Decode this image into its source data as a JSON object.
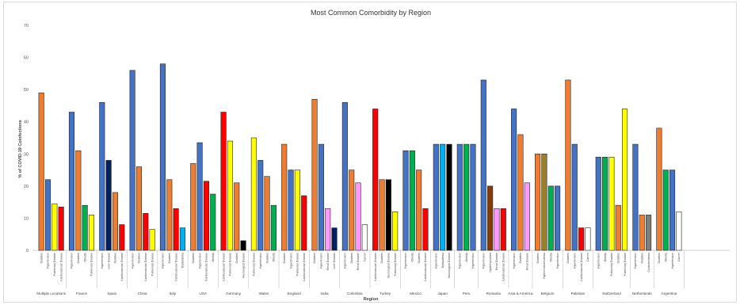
{
  "chart_data": {
    "type": "bar",
    "title": "Most Common Comorbidity by Region",
    "xlabel": "Region",
    "ylabel": "% of COVID-19 Coinfections",
    "ylim": [
      0,
      70
    ],
    "yticks": [
      0,
      10,
      20,
      30,
      40,
      50,
      60,
      70
    ],
    "grid": false,
    "legend": "none",
    "colors": {
      "Diabetes": "#ed7d31",
      "Hypertension": "#4472c4",
      "Pulmonary Disease": "#ffff00",
      "Cardiovascular Disease": "#ff0000",
      "Obesity": "#00b050",
      "Liver Disease": "#002060",
      "Dyslipidemia": "#00b0f0",
      "Neurological Disease": "#000000",
      "Renal Disease": "#ff99ff",
      "Cancer": "#ffffff",
      "Hyperthyroidism": "#843c0c",
      "Hypercholesterolemia": "#9c7f29",
      "Cholesterolemia": "#7f7f7f"
    },
    "groups": [
      {
        "region": "Multiple Locations",
        "bars": [
          {
            "label": "Diabetes",
            "value": 49
          },
          {
            "label": "Hypertension",
            "value": 22
          },
          {
            "label": "Pulmonary Disease",
            "value": 14.5
          },
          {
            "label": "Cardiovascular Disease",
            "value": 13.5
          }
        ]
      },
      {
        "region": "France",
        "bars": [
          {
            "label": "Hypertension",
            "value": 43
          },
          {
            "label": "Diabetes",
            "value": 31
          },
          {
            "label": "Obesity",
            "value": 14
          },
          {
            "label": "Pulmonary Disease",
            "value": 11
          }
        ]
      },
      {
        "region": "Spain",
        "bars": [
          {
            "label": "Hypertension",
            "value": 46
          },
          {
            "label": "Liver Disease",
            "value": 28
          },
          {
            "label": "Diabetes",
            "value": 18
          },
          {
            "label": "Cardiovascular Disease",
            "value": 8
          }
        ]
      },
      {
        "region": "China",
        "bars": [
          {
            "label": "Hypertension",
            "value": 56
          },
          {
            "label": "Diabetes",
            "value": 26
          },
          {
            "label": "Cardiovascular Disease",
            "value": 11.5
          },
          {
            "label": "Pulmonary Disease",
            "value": 6.5
          }
        ]
      },
      {
        "region": "Italy",
        "bars": [
          {
            "label": "Hypertension",
            "value": 58
          },
          {
            "label": "Diabetes",
            "value": 22
          },
          {
            "label": "Cardiovascular Disease",
            "value": 13
          },
          {
            "label": "Dyslipidemia",
            "value": 7
          }
        ]
      },
      {
        "region": "USA",
        "bars": [
          {
            "label": "Diabetes",
            "value": 27
          },
          {
            "label": "Hypertension",
            "value": 33.5
          },
          {
            "label": "Cardiovascular Disease",
            "value": 21.5
          },
          {
            "label": "Obesity",
            "value": 17.5
          }
        ]
      },
      {
        "region": "Germany",
        "bars": [
          {
            "label": "Cardiovascular Disease",
            "value": 43
          },
          {
            "label": "Pulmonary Disease",
            "value": 34
          },
          {
            "label": "Diabetes",
            "value": 21
          },
          {
            "label": "Neurological Disease",
            "value": 3
          }
        ]
      },
      {
        "region": "Wales",
        "bars": [
          {
            "label": "Pulmonary Disease",
            "value": 35
          },
          {
            "label": "Hypertension",
            "value": 28
          },
          {
            "label": "Diabetes",
            "value": 23
          },
          {
            "label": "Obesity",
            "value": 14
          }
        ]
      },
      {
        "region": "England",
        "bars": [
          {
            "label": "Diabetes",
            "value": 33
          },
          {
            "label": "Hypertension",
            "value": 25
          },
          {
            "label": "Pulmonary Disease",
            "value": 25
          },
          {
            "label": "Cardiovascular Disease",
            "value": 17
          }
        ]
      },
      {
        "region": "India",
        "bars": [
          {
            "label": "Diabetes",
            "value": 47
          },
          {
            "label": "Hypertension",
            "value": 33
          },
          {
            "label": "Renal Disease",
            "value": 13
          },
          {
            "label": "Liver Disease",
            "value": 7
          }
        ]
      },
      {
        "region": "Colombia",
        "bars": [
          {
            "label": "Hypertension",
            "value": 46
          },
          {
            "label": "Diabetes",
            "value": 25
          },
          {
            "label": "Renal Disease",
            "value": 21
          },
          {
            "label": "Cancer",
            "value": 8
          }
        ]
      },
      {
        "region": "Turkey",
        "bars": [
          {
            "label": "Cardiovascular Disease",
            "value": 44
          },
          {
            "label": "Diabetes",
            "value": 22
          },
          {
            "label": "Neurological Disease",
            "value": 22
          },
          {
            "label": "Pulmonary Disease",
            "value": 12
          }
        ]
      },
      {
        "region": "Mexico",
        "bars": [
          {
            "label": "Hypertension",
            "value": 31
          },
          {
            "label": "Obesity",
            "value": 31
          },
          {
            "label": "Diabetes",
            "value": 25
          },
          {
            "label": "Cardiovascular Disease",
            "value": 13
          }
        ]
      },
      {
        "region": "Japan",
        "bars": [
          {
            "label": "Hypertension",
            "value": 33
          },
          {
            "label": "Dyslipidemia",
            "value": 33
          },
          {
            "label": "Neurological Disease",
            "value": 33
          }
        ]
      },
      {
        "region": "Peru",
        "bars": [
          {
            "label": "Hypertension",
            "value": 33
          },
          {
            "label": "Obesity",
            "value": 33
          },
          {
            "label": "Hypertension",
            "value": 33
          }
        ]
      },
      {
        "region": "Romania",
        "bars": [
          {
            "label": "Hypertension",
            "value": 53
          },
          {
            "label": "Hyperthyroidism",
            "value": 20
          },
          {
            "label": "Renal Disease",
            "value": 13
          },
          {
            "label": "Cardiovascular Disease",
            "value": 13
          }
        ]
      },
      {
        "region": "Asia & America",
        "bars": [
          {
            "label": "Hypertension",
            "value": 44
          },
          {
            "label": "Diabetes",
            "value": 36
          },
          {
            "label": "Renal Disease",
            "value": 21
          }
        ]
      },
      {
        "region": "Belgium",
        "bars": [
          {
            "label": "Diabetes",
            "value": 30
          },
          {
            "label": "Hypercholesterolemia",
            "value": 30
          },
          {
            "label": "Obesity",
            "value": 20
          },
          {
            "label": "Hypertension",
            "value": 20
          }
        ]
      },
      {
        "region": "Pakistan",
        "bars": [
          {
            "label": "Diabetes",
            "value": 53
          },
          {
            "label": "Hypertension",
            "value": 33
          },
          {
            "label": "Cardiovascular Disease",
            "value": 7
          },
          {
            "label": "Cancer",
            "value": 7
          }
        ]
      },
      {
        "region": "Switzerland",
        "bars": [
          {
            "label": "Hypertension",
            "value": 29
          },
          {
            "label": "Obesity",
            "value": 29
          },
          {
            "label": "Pulmonary Disease",
            "value": 29
          },
          {
            "label": "Diabetes",
            "value": 14
          },
          {
            "label": "Pulmonary Disease",
            "value": 44
          }
        ]
      },
      {
        "region": "Netherlands",
        "bars": [
          {
            "label": "Hypertension",
            "value": 33
          },
          {
            "label": "Diabetes",
            "value": 11
          },
          {
            "label": "Cholesterolemia",
            "value": 11
          }
        ]
      },
      {
        "region": "Argentina",
        "bars": [
          {
            "label": "Diabetes",
            "value": 38
          },
          {
            "label": "Obesity",
            "value": 25
          },
          {
            "label": "Hypertension",
            "value": 25
          },
          {
            "label": "Cancer",
            "value": 12
          }
        ]
      }
    ]
  }
}
